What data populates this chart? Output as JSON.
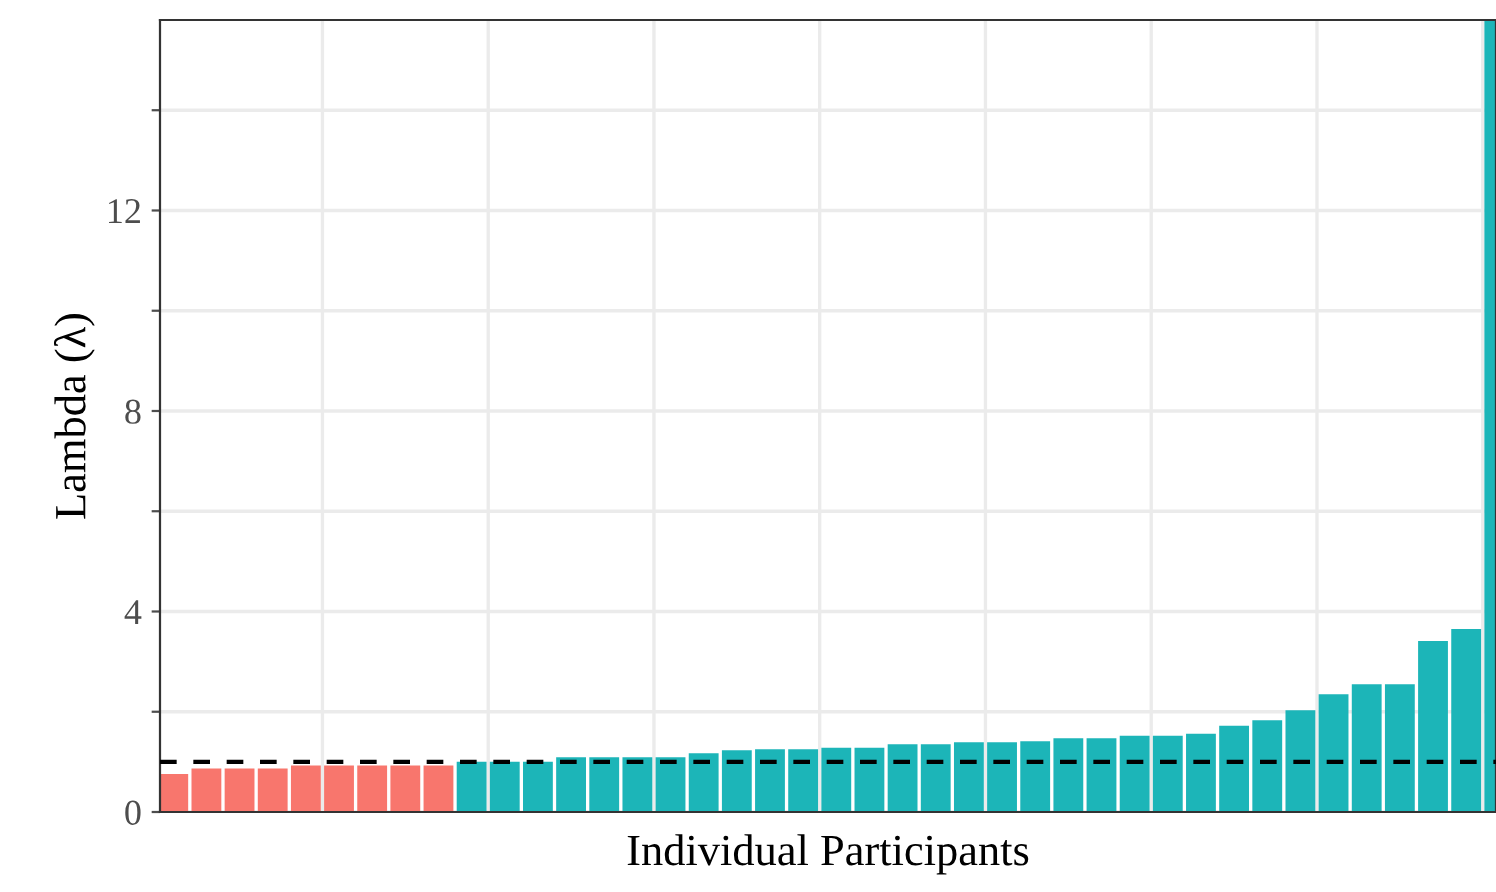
{
  "chart_data": {
    "type": "bar",
    "xlabel": "Individual Participants",
    "ylabel": "Lambda (λ)",
    "categories": [
      null,
      null,
      null,
      null,
      null,
      null,
      null,
      null,
      null,
      null,
      null,
      null,
      null,
      null,
      null,
      null,
      null,
      null,
      null,
      null,
      null,
      null,
      null,
      null,
      null,
      null,
      null,
      null,
      null,
      null,
      null,
      null,
      null,
      null,
      null,
      null,
      null,
      null,
      null,
      null,
      null
    ],
    "values": [
      0.76,
      0.87,
      0.87,
      0.87,
      0.93,
      0.93,
      0.93,
      0.93,
      0.93,
      1.0,
      1.0,
      1.0,
      1.09,
      1.09,
      1.09,
      1.09,
      1.17,
      1.23,
      1.25,
      1.25,
      1.28,
      1.28,
      1.35,
      1.35,
      1.39,
      1.39,
      1.41,
      1.47,
      1.47,
      1.52,
      1.52,
      1.56,
      1.72,
      1.83,
      2.03,
      2.35,
      2.55,
      2.55,
      3.41,
      3.65,
      15.8
    ],
    "colors": [
      "#f8766d",
      "#f8766d",
      "#f8766d",
      "#f8766d",
      "#f8766d",
      "#f8766d",
      "#f8766d",
      "#f8766d",
      "#f8766d",
      "#1cb5b8",
      "#1cb5b8",
      "#1cb5b8",
      "#1cb5b8",
      "#1cb5b8",
      "#1cb5b8",
      "#1cb5b8",
      "#1cb5b8",
      "#1cb5b8",
      "#1cb5b8",
      "#1cb5b8",
      "#1cb5b8",
      "#1cb5b8",
      "#1cb5b8",
      "#1cb5b8",
      "#1cb5b8",
      "#1cb5b8",
      "#1cb5b8",
      "#1cb5b8",
      "#1cb5b8",
      "#1cb5b8",
      "#1cb5b8",
      "#1cb5b8",
      "#1cb5b8",
      "#1cb5b8",
      "#1cb5b8",
      "#1cb5b8",
      "#1cb5b8",
      "#1cb5b8",
      "#1cb5b8",
      "#1cb5b8",
      "#1cb5b8"
    ],
    "ylim": [
      0,
      15.8
    ],
    "yticks": [
      0,
      {
        "value": 2,
        "label": null
      },
      4,
      {
        "value": 6,
        "label": null
      },
      8,
      {
        "value": 10,
        "label": null
      },
      12,
      {
        "value": 14,
        "label": null
      }
    ],
    "ref_lines": [
      {
        "axis": "y",
        "value": 1,
        "label": null,
        "color": "#000000",
        "line_style": "dashed"
      }
    ],
    "grid": true
  }
}
